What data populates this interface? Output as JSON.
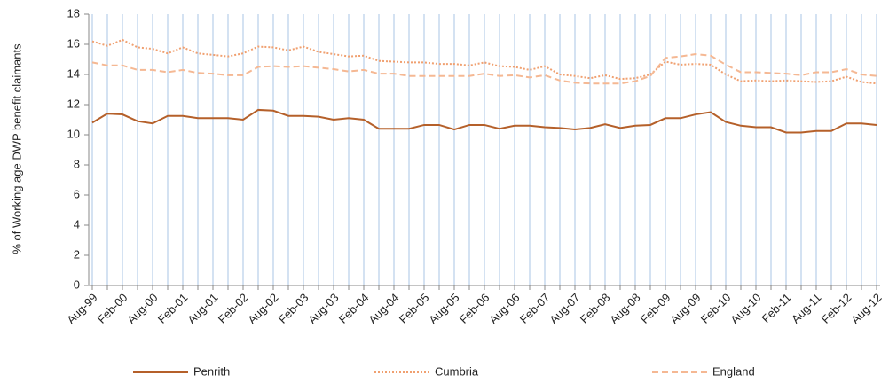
{
  "chart_data": {
    "type": "line",
    "y_label": "% of Working age DWP benefit claimants",
    "categories": [
      "Aug-99",
      null,
      "Feb-00",
      null,
      "Aug-00",
      null,
      "Feb-01",
      null,
      "Aug-01",
      null,
      "Feb-02",
      null,
      "Aug-02",
      null,
      "Feb-03",
      null,
      "Aug-03",
      null,
      "Feb-04",
      null,
      "Aug-04",
      null,
      "Feb-05",
      null,
      "Aug-05",
      null,
      "Feb-06",
      null,
      "Aug-06",
      null,
      "Feb-07",
      null,
      "Aug-07",
      null,
      "Feb-08",
      null,
      "Aug-08",
      null,
      "Feb-09",
      null,
      "Aug-09",
      null,
      "Feb-10",
      null,
      "Aug-10",
      null,
      "Feb-11",
      null,
      "Aug-11",
      null,
      "Feb-12",
      null,
      "Aug-12"
    ],
    "series": [
      {
        "name": "Penrith",
        "color": "#b5602a",
        "style": "solid",
        "values": [
          10.8,
          11.4,
          11.35,
          10.9,
          10.75,
          11.25,
          11.25,
          11.1,
          11.1,
          11.1,
          11.0,
          11.65,
          11.6,
          11.25,
          11.25,
          11.2,
          11.0,
          11.1,
          11.0,
          10.4,
          10.4,
          10.4,
          10.65,
          10.65,
          10.35,
          10.65,
          10.65,
          10.4,
          10.6,
          10.6,
          10.5,
          10.45,
          10.35,
          10.45,
          10.7,
          10.45,
          10.6,
          10.65,
          11.1,
          11.1,
          11.35,
          11.5,
          10.85,
          10.6,
          10.5,
          10.5,
          10.15,
          10.15,
          10.25,
          10.25,
          10.75,
          10.75,
          10.65
        ]
      },
      {
        "name": "Cumbria",
        "color": "#f0a070",
        "style": "dotted",
        "values": [
          16.2,
          15.9,
          16.3,
          15.8,
          15.7,
          15.4,
          15.8,
          15.4,
          15.3,
          15.2,
          15.4,
          15.85,
          15.8,
          15.6,
          15.85,
          15.5,
          15.35,
          15.2,
          15.25,
          14.9,
          14.85,
          14.8,
          14.8,
          14.7,
          14.7,
          14.6,
          14.8,
          14.55,
          14.5,
          14.3,
          14.55,
          14.0,
          13.9,
          13.75,
          13.95,
          13.7,
          13.75,
          14.0,
          14.85,
          14.65,
          14.7,
          14.65,
          14.0,
          13.55,
          13.6,
          13.55,
          13.6,
          13.55,
          13.5,
          13.55,
          13.85,
          13.5,
          13.4
        ]
      },
      {
        "name": "England",
        "color": "#f5b893",
        "style": "dashed",
        "values": [
          14.8,
          14.6,
          14.6,
          14.3,
          14.3,
          14.15,
          14.3,
          14.1,
          14.05,
          13.95,
          13.95,
          14.5,
          14.55,
          14.5,
          14.55,
          14.45,
          14.35,
          14.2,
          14.3,
          14.05,
          14.05,
          13.9,
          13.9,
          13.9,
          13.9,
          13.9,
          14.05,
          13.9,
          13.95,
          13.8,
          13.95,
          13.6,
          13.45,
          13.4,
          13.4,
          13.4,
          13.55,
          13.9,
          15.1,
          15.2,
          15.35,
          15.25,
          14.65,
          14.15,
          14.15,
          14.1,
          14.05,
          13.95,
          14.15,
          14.15,
          14.35,
          14.0,
          13.9
        ]
      }
    ],
    "ylim": [
      0,
      18
    ],
    "yticks": [
      0,
      2,
      4,
      6,
      8,
      10,
      12,
      14,
      16,
      18
    ],
    "xgrid": true,
    "grid_color": "#a9c4e4",
    "legend": "bottom"
  }
}
